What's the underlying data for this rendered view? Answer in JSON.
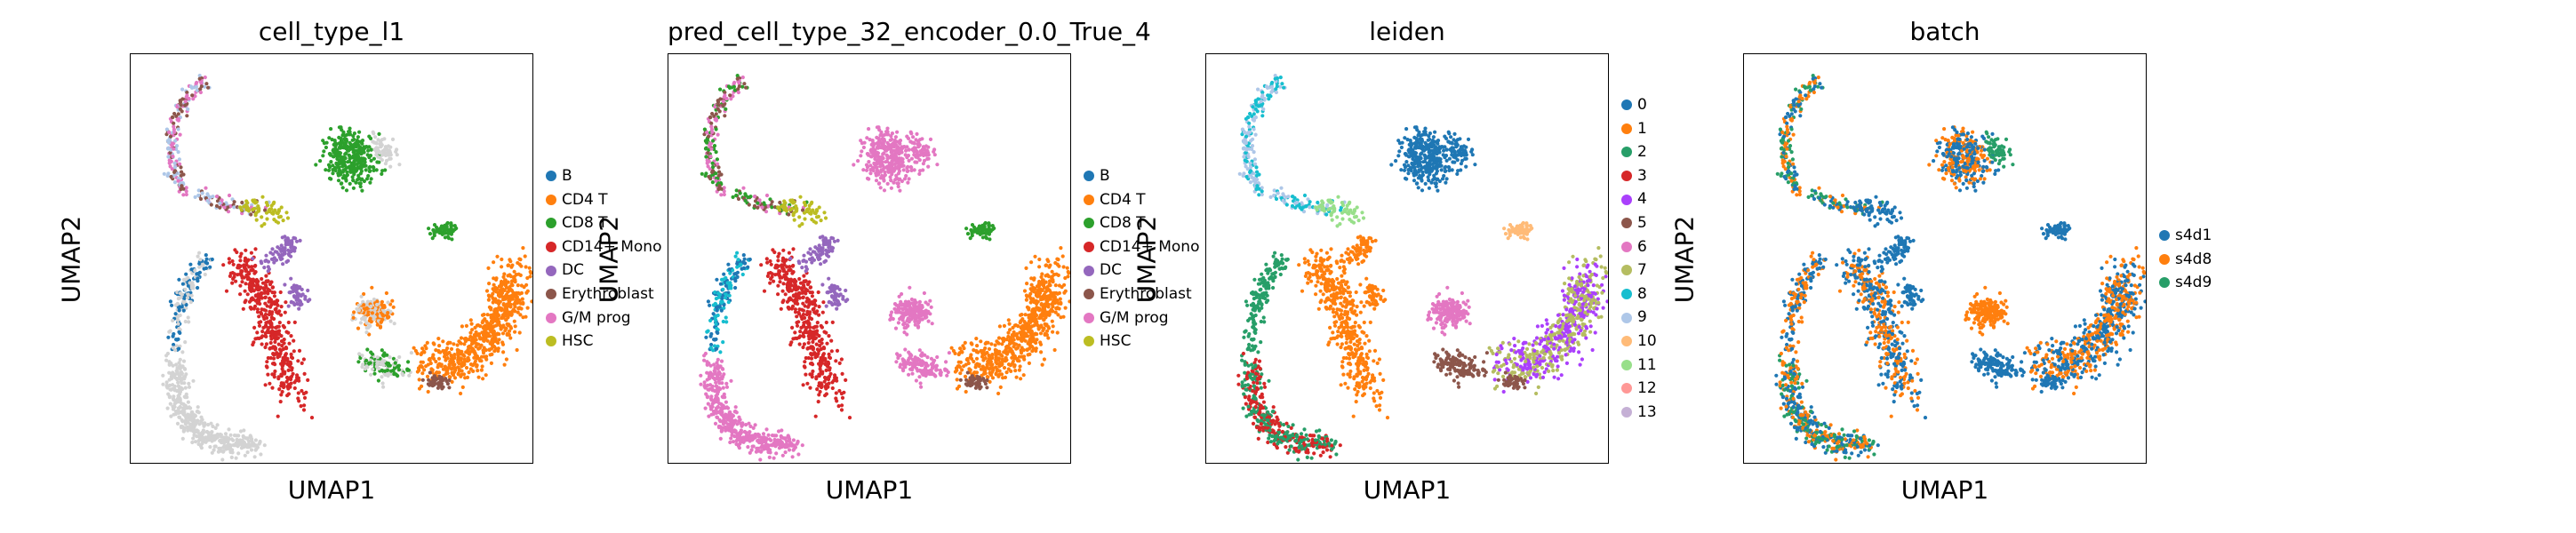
{
  "chart_data": [
    {
      "type": "scatter",
      "title": "cell_type_l1",
      "xlabel": "UMAP1",
      "ylabel": "UMAP2",
      "legend": [
        "B",
        "CD4 T",
        "CD8 T",
        "CD14+ Mono",
        "DC",
        "Erythroblast",
        "G/M prog",
        "HSC"
      ],
      "colors": [
        "#1f77b4",
        "#ff7f0e",
        "#2ca02c",
        "#d62728",
        "#9467bd",
        "#8c564b",
        "#e377c2",
        "#bcbd22"
      ],
      "unlabeled_color": "#d3d3d3",
      "legend_placement": "right"
    },
    {
      "type": "scatter",
      "title": "pred_cell_type_32_encoder_0.0_True_4",
      "xlabel": "UMAP1",
      "ylabel": "UMAP2",
      "legend": [
        "B",
        "CD4 T",
        "CD8 T",
        "CD14+ Mono",
        "DC",
        "Erythroblast",
        "G/M prog",
        "HSC"
      ],
      "colors": [
        "#1f77b4",
        "#ff7f0e",
        "#2ca02c",
        "#d62728",
        "#9467bd",
        "#8c564b",
        "#e377c2",
        "#bcbd22"
      ],
      "legend_placement": "right"
    },
    {
      "type": "scatter",
      "title": "leiden",
      "xlabel": "UMAP1",
      "ylabel": "UMAP2",
      "legend": [
        "0",
        "1",
        "2",
        "3",
        "4",
        "5",
        "6",
        "7",
        "8",
        "9",
        "10",
        "11",
        "12",
        "13"
      ],
      "colors": [
        "#1f77b4",
        "#ff7f0e",
        "#279e68",
        "#d62728",
        "#aa40fc",
        "#8c564b",
        "#e377c2",
        "#b5bd61",
        "#17becf",
        "#aec7e8",
        "#ffbb78",
        "#98df8a",
        "#ff9896",
        "#c5b0d5"
      ],
      "legend_placement": "right"
    },
    {
      "type": "scatter",
      "title": "batch",
      "xlabel": "UMAP1",
      "ylabel": "UMAP2",
      "legend": [
        "s4d1",
        "s4d8",
        "s4d9"
      ],
      "colors": [
        "#1f77b4",
        "#ff7f0e",
        "#279e68"
      ],
      "legend_placement": "right"
    }
  ]
}
